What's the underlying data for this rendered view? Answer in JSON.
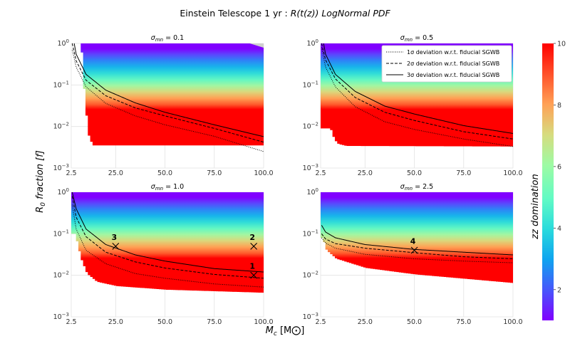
{
  "figure": {
    "title_main": "Einstein Telescope 1 yr : ",
    "title_italic": "R(t(z)) LogNormal PDF",
    "xlabel": "M",
    "xlabel_sub": "c",
    "xlabel_unit": "[M",
    "xlabel_unit_close": "]",
    "ylabel": "R",
    "ylabel_sub": "0",
    "ylabel_rest": " fraction [f]",
    "colorbar_label": "z domination",
    "colorbar_range": [
      1,
      10
    ],
    "colorbar_ticks": [
      "2",
      "4",
      "6",
      "8",
      "10"
    ],
    "colormap": [
      "#8000ff",
      "#4756fb",
      "#0fa4ef",
      "#2adbdc",
      "#62fbc4",
      "#9dfba4",
      "#d6dc7f",
      "#ffa156",
      "#ff512a",
      "#ff0000"
    ]
  },
  "legend": [
    {
      "label": "1σ deviation w.r.t. fiducial SGWB",
      "style": "dotted"
    },
    {
      "label": "2σ deviation w.r.t. fiducial SGWB",
      "style": "dashed"
    },
    {
      "label": "3σ deviation w.r.t. fiducial SGWB",
      "style": "solid"
    }
  ],
  "chart_data": {
    "type": "heatmap",
    "xscale": "linear",
    "yscale": "log",
    "xlim": [
      2.5,
      100.0
    ],
    "ylim": [
      0.001,
      1
    ],
    "xtick_labels": [
      "2.5",
      "25.0",
      "50.0",
      "75.0",
      "100.0"
    ],
    "xtick_values": [
      2.5,
      25.0,
      50.0,
      75.0,
      100.0
    ],
    "ytick_exps": [
      0,
      -1,
      -2,
      -3
    ],
    "panels": [
      {
        "title": "σ_mn = 0.1",
        "title_prefix": "σ",
        "title_sub": "mn",
        "title_suffix": " = 0.1",
        "floor_knots": [
          [
            7,
            1.0
          ],
          [
            9,
            0.035
          ],
          [
            11,
            0.0055
          ],
          [
            13,
            0.0035
          ],
          [
            100,
            0.0035
          ]
        ],
        "top_gray_start": 93,
        "curves": {
          "sigma1": [
            [
              3,
              0.7
            ],
            [
              5,
              0.27
            ],
            [
              10,
              0.09
            ],
            [
              20,
              0.036
            ],
            [
              35,
              0.018
            ],
            [
              50,
              0.011
            ],
            [
              75,
              0.0058
            ],
            [
              100,
              0.0025
            ]
          ],
          "sigma2": [
            [
              3,
              1.0
            ],
            [
              5,
              0.38
            ],
            [
              10,
              0.13
            ],
            [
              20,
              0.055
            ],
            [
              35,
              0.028
            ],
            [
              50,
              0.018
            ],
            [
              75,
              0.009
            ],
            [
              100,
              0.0042
            ]
          ],
          "sigma3": [
            [
              4,
              1.0
            ],
            [
              5,
              0.55
            ],
            [
              10,
              0.18
            ],
            [
              20,
              0.075
            ],
            [
              35,
              0.037
            ],
            [
              50,
              0.022
            ],
            [
              75,
              0.011
            ],
            [
              100,
              0.0057
            ]
          ]
        },
        "markers": []
      },
      {
        "title": "σ_mn = 0.5",
        "title_prefix": "σ",
        "title_sub": "mn",
        "title_suffix": " = 0.5",
        "floor_knots": [
          [
            7,
            0.009
          ],
          [
            9,
            0.0048
          ],
          [
            11,
            0.0038
          ],
          [
            15,
            0.0034
          ],
          [
            100,
            0.0033
          ]
        ],
        "top_gray_start": null,
        "curves": {
          "sigma1": [
            [
              3,
              0.8
            ],
            [
              5,
              0.27
            ],
            [
              10,
              0.09
            ],
            [
              20,
              0.03
            ],
            [
              35,
              0.013
            ],
            [
              50,
              0.0085
            ],
            [
              75,
              0.005
            ],
            [
              100,
              0.0033
            ]
          ],
          "sigma2": [
            [
              3,
              1.0
            ],
            [
              5,
              0.4
            ],
            [
              10,
              0.14
            ],
            [
              20,
              0.05
            ],
            [
              35,
              0.022
            ],
            [
              50,
              0.014
            ],
            [
              75,
              0.0075
            ],
            [
              100,
              0.005
            ]
          ],
          "sigma3": [
            [
              4,
              1.0
            ],
            [
              5,
              0.55
            ],
            [
              10,
              0.18
            ],
            [
              20,
              0.07
            ],
            [
              35,
              0.031
            ],
            [
              50,
              0.02
            ],
            [
              75,
              0.0105
            ],
            [
              100,
              0.0068
            ]
          ]
        },
        "markers": []
      },
      {
        "title": "σ_mn = 1.0",
        "title_prefix": "σ",
        "title_sub": "mn",
        "title_suffix": " = 1.0",
        "floor_knots": [
          [
            4,
            0.1
          ],
          [
            7,
            0.025
          ],
          [
            10,
            0.011
          ],
          [
            15,
            0.007
          ],
          [
            25,
            0.0055
          ],
          [
            50,
            0.0045
          ],
          [
            100,
            0.0038
          ]
        ],
        "top_gray_start": null,
        "curves": {
          "sigma1": [
            [
              3,
              0.5
            ],
            [
              5,
              0.13
            ],
            [
              10,
              0.04
            ],
            [
              20,
              0.019
            ],
            [
              35,
              0.011
            ],
            [
              50,
              0.0085
            ],
            [
              75,
              0.0062
            ],
            [
              100,
              0.0052
            ]
          ],
          "sigma2": [
            [
              3,
              0.8
            ],
            [
              5,
              0.25
            ],
            [
              10,
              0.085
            ],
            [
              20,
              0.036
            ],
            [
              35,
              0.021
            ],
            [
              50,
              0.015
            ],
            [
              75,
              0.0105
            ],
            [
              100,
              0.0085
            ]
          ],
          "sigma3": [
            [
              3,
              1.0
            ],
            [
              5,
              0.4
            ],
            [
              10,
              0.13
            ],
            [
              20,
              0.055
            ],
            [
              35,
              0.031
            ],
            [
              50,
              0.022
            ],
            [
              75,
              0.0145
            ],
            [
              100,
              0.012
            ]
          ]
        },
        "markers": [
          {
            "label": "1",
            "x": 95.0,
            "y": 0.01
          },
          {
            "label": "2",
            "x": 95.0,
            "y": 0.05
          },
          {
            "label": "3",
            "x": 25.0,
            "y": 0.05
          }
        ]
      },
      {
        "title": "σ_mn = 2.5",
        "title_prefix": "σ",
        "title_sub": "mn",
        "title_suffix": " = 2.5",
        "floor_knots": [
          [
            3,
            0.08
          ],
          [
            5,
            0.04
          ],
          [
            10,
            0.025
          ],
          [
            25,
            0.015
          ],
          [
            50,
            0.0105
          ],
          [
            100,
            0.0065
          ]
        ],
        "top_gray_start": null,
        "curves": {
          "sigma1": [
            [
              3,
              0.08
            ],
            [
              5,
              0.06
            ],
            [
              10,
              0.045
            ],
            [
              25,
              0.032
            ],
            [
              50,
              0.025
            ],
            [
              75,
              0.022
            ],
            [
              100,
              0.02
            ]
          ],
          "sigma2": [
            [
              3,
              0.1
            ],
            [
              5,
              0.075
            ],
            [
              10,
              0.058
            ],
            [
              25,
              0.045
            ],
            [
              50,
              0.035
            ],
            [
              75,
              0.028
            ],
            [
              100,
              0.025
            ]
          ],
          "sigma3": [
            [
              3,
              0.16
            ],
            [
              5,
              0.11
            ],
            [
              10,
              0.08
            ],
            [
              25,
              0.055
            ],
            [
              50,
              0.042
            ],
            [
              75,
              0.036
            ],
            [
              100,
              0.031
            ]
          ]
        },
        "markers": [
          {
            "label": "4",
            "x": 50.0,
            "y": 0.04
          }
        ]
      }
    ]
  }
}
